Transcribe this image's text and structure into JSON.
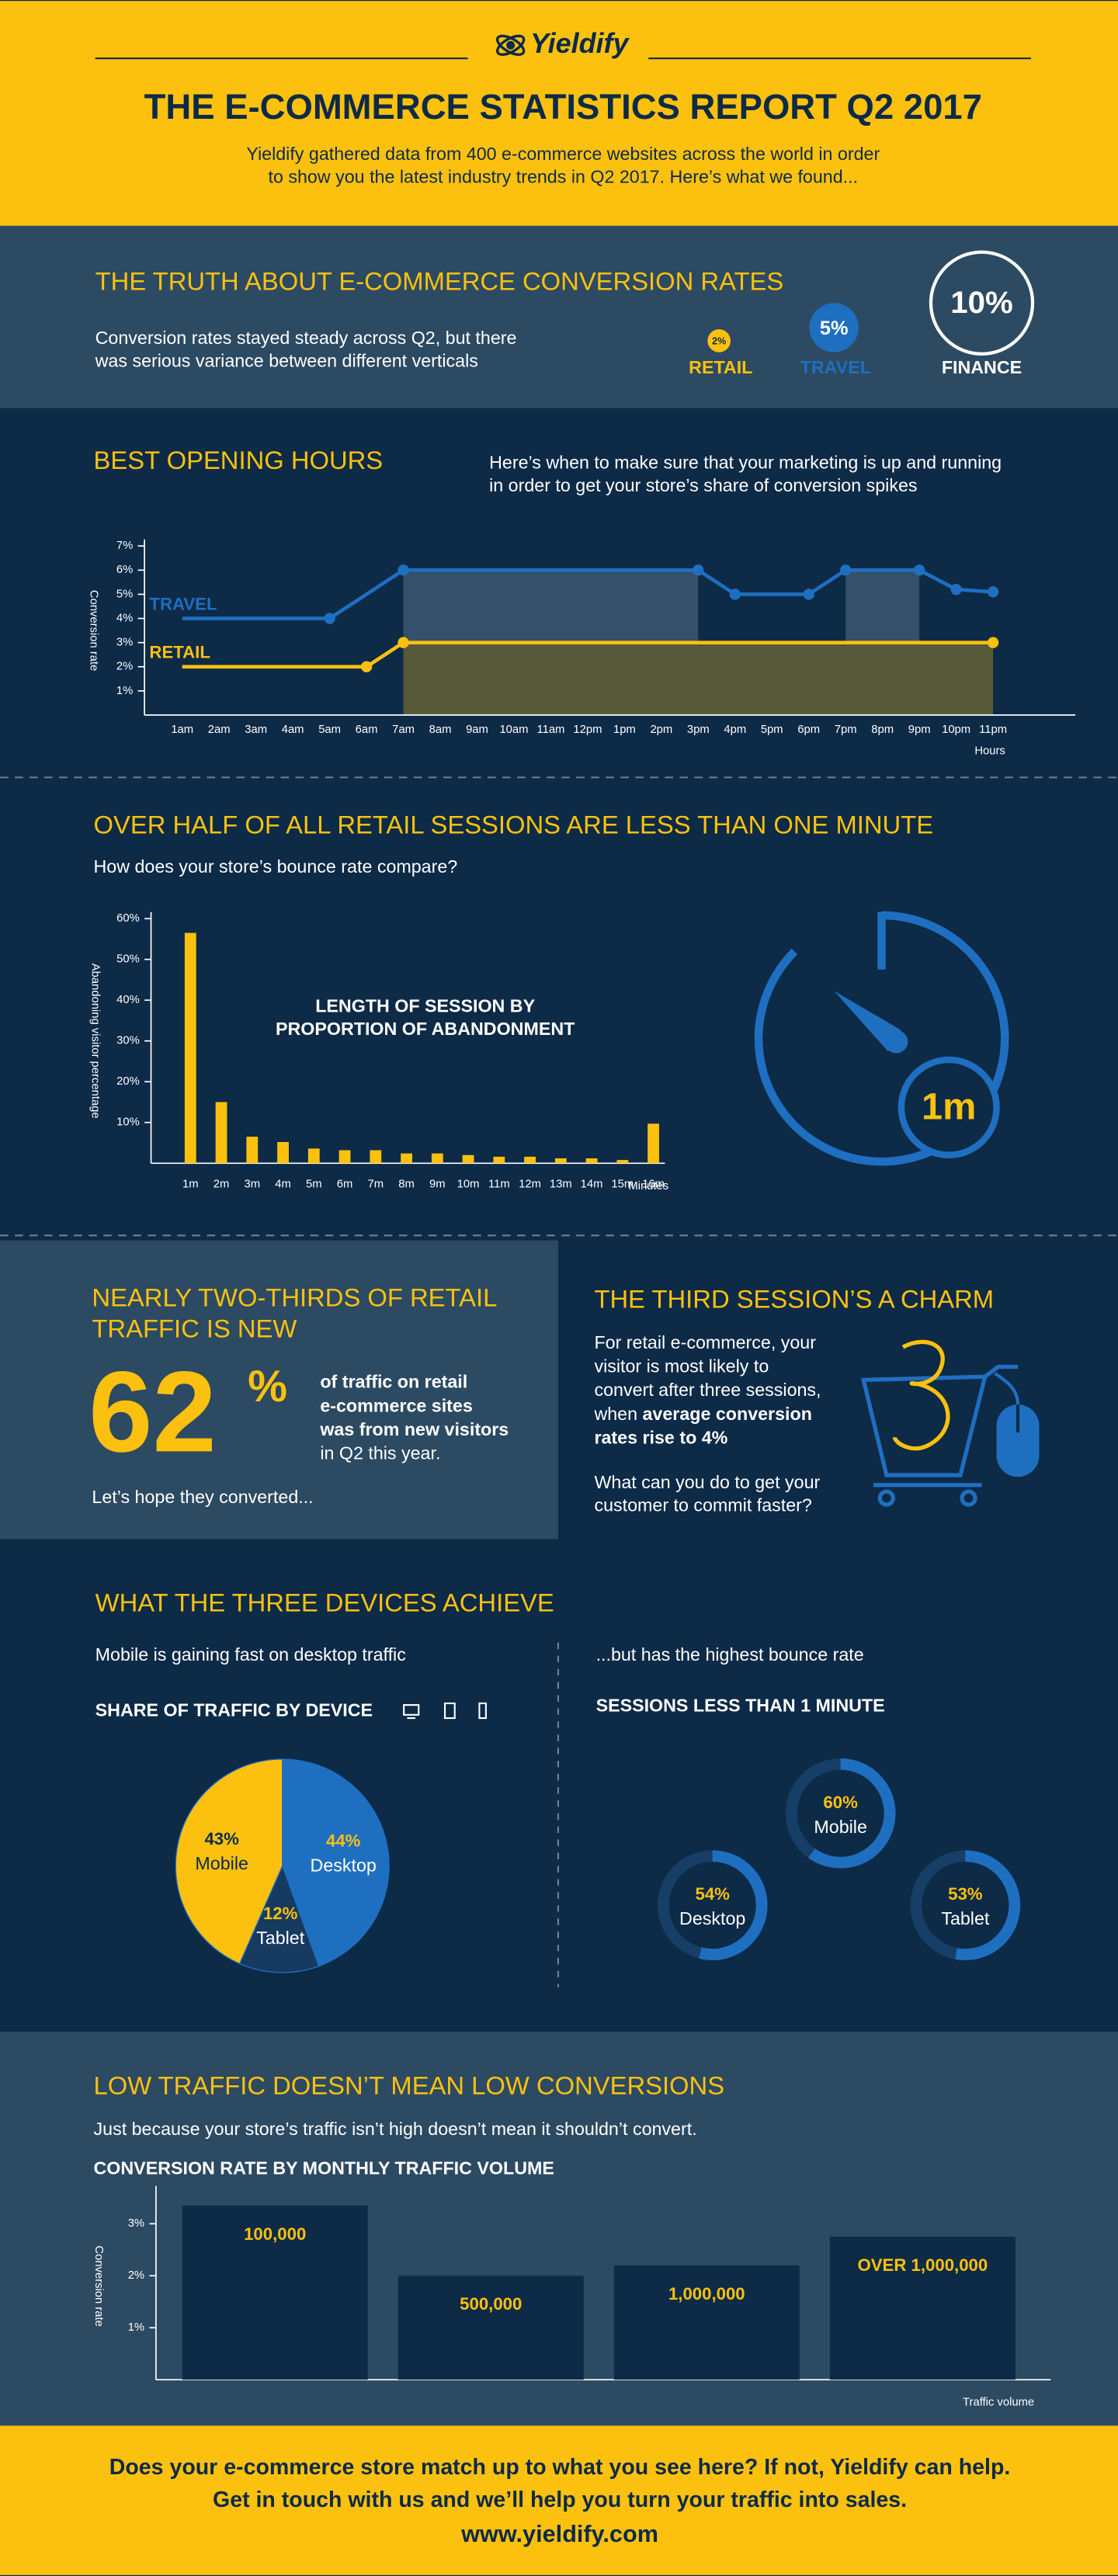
{
  "header": {
    "logo": "Yieldify",
    "title": "THE E-COMMERCE STATISTICS REPORT Q2 2017",
    "intro": [
      "Yieldify gathered data from 400 e-commerce websites across the world in order",
      "to show you the latest industry trends in Q2 2017. Here’s what we found..."
    ]
  },
  "conversion": {
    "heading": "THE TRUTH ABOUT E-COMMERCE CONVERSION RATES",
    "text": [
      "Conversion rates stayed steady across Q2, but there",
      "was serious variance between different verticals"
    ],
    "verticals": [
      {
        "label": "RETAIL",
        "value": "2%"
      },
      {
        "label": "TRAVEL",
        "value": "5%"
      },
      {
        "label": "FINANCE",
        "value": "10%"
      }
    ]
  },
  "hours": {
    "heading": "BEST OPENING HOURS",
    "text": [
      "Here’s when to make sure that your marketing is up and running",
      "in order to get your store’s share of conversion spikes"
    ]
  },
  "sessions": {
    "heading": "OVER HALF OF ALL RETAIL SESSIONS ARE LESS THAN ONE MINUTE",
    "text": "How does your store’s bounce rate compare?",
    "timer": "1m"
  },
  "new_traffic": {
    "heading": [
      "NEARLY TWO-THIRDS OF RETAIL",
      "TRAFFIC IS NEW"
    ],
    "figure": "62",
    "figure_unit": "%",
    "text": [
      [
        {
          "text": "of traffic on retail",
          "bold": true
        }
      ],
      [
        {
          "text": "e-commerce sites",
          "bold": true
        }
      ],
      [
        {
          "text": "was from new visitors",
          "bold": true
        }
      ],
      [
        {
          "text": "in Q2 this year."
        }
      ]
    ],
    "note": "Let’s hope they converted..."
  },
  "third_session": {
    "heading": "THE THIRD SESSION’S A CHARM",
    "body": [
      [
        {
          "text": "For retail e-commerce, your"
        }
      ],
      [
        {
          "text": "visitor is most likely to"
        }
      ],
      [
        {
          "text": "convert after three sessions,"
        }
      ],
      [
        {
          "text": "when "
        },
        {
          "text": "average conversion",
          "bold": true
        }
      ],
      [
        {
          "text": "rates rise to 4%",
          "bold": true
        }
      ]
    ],
    "question": [
      "What can you do to get your",
      "customer to commit faster?"
    ]
  },
  "devices": {
    "heading": "WHAT THE THREE DEVICES ACHIEVE",
    "left_text": "Mobile is gaining fast on desktop traffic",
    "right_text": "...but has the highest bounce rate"
  },
  "traffic": {
    "heading": "LOW TRAFFIC DOESN’T MEAN LOW CONVERSIONS",
    "text": "Just because your store’s traffic isn’t high doesn’t mean it shouldn’t convert."
  },
  "footer": {
    "lines": [
      "Does your e-commerce store match up to what you see here? If not, Yieldify can help.",
      "Get in touch with us and we’ll help you turn your traffic into sales.",
      "www.yieldify.com"
    ]
  },
  "chart_data": [
    {
      "type": "line",
      "xlabel": "Hours",
      "ylabel": "Conversion rate",
      "categories": [
        "1am",
        "2am",
        "3am",
        "4am",
        "5am",
        "6am",
        "7am",
        "8am",
        "9am",
        "10am",
        "11am",
        "12pm",
        "1pm",
        "2pm",
        "3pm",
        "4pm",
        "5pm",
        "6pm",
        "7pm",
        "8pm",
        "9pm",
        "10pm",
        "11pm"
      ],
      "series": [
        {
          "name": "TRAVEL",
          "color": "#1f6fc1",
          "values": [
            4,
            4,
            4,
            4,
            4,
            5,
            6,
            6,
            6,
            6,
            6,
            6,
            6,
            6,
            6,
            5,
            5,
            5,
            6,
            6,
            6,
            5.2,
            5.1
          ]
        },
        {
          "name": "RETAIL",
          "color": "#fcc10f",
          "values": [
            2,
            2,
            2,
            2,
            2,
            2,
            3,
            3,
            3,
            3,
            3,
            3,
            3,
            3,
            3,
            3,
            3,
            3,
            3,
            3,
            3,
            3,
            3
          ]
        }
      ],
      "ylim": [
        0,
        7
      ],
      "yticks": [
        {
          "value": 1,
          "label": "1%"
        },
        {
          "value": 2,
          "label": "2%"
        },
        {
          "value": 3,
          "label": "3%"
        },
        {
          "value": 4,
          "label": "4%"
        },
        {
          "value": 5,
          "label": "5%"
        },
        {
          "value": 6,
          "label": "6%"
        },
        {
          "value": 7,
          "label": "7%"
        }
      ]
    },
    {
      "type": "bar",
      "title": [
        "LENGTH OF SESSION BY",
        "PROPORTION OF ABANDONMENT"
      ],
      "xlabel": "Minutes",
      "ylabel": "Abandoning visitor percentage",
      "color": "#fcc10f",
      "categories": [
        "1m",
        "2m",
        "3m",
        "4m",
        "5m",
        "6m",
        "7m",
        "8m",
        "9m",
        "10m",
        "11m",
        "12m",
        "13m",
        "14m",
        "15m",
        "16m"
      ],
      "values": [
        56.5,
        15,
        6.5,
        5.2,
        3.6,
        3.2,
        3.2,
        2.4,
        2.4,
        2,
        1.6,
        1.6,
        1.2,
        1.2,
        0.8,
        9.7
      ],
      "ylim": [
        0,
        60
      ],
      "yticks": [
        {
          "value": 10,
          "label": "10%"
        },
        {
          "value": 20,
          "label": "20%"
        },
        {
          "value": 30,
          "label": "30%"
        },
        {
          "value": 40,
          "label": "40%"
        },
        {
          "value": 50,
          "label": "50%"
        },
        {
          "value": 60,
          "label": "60%"
        }
      ]
    },
    {
      "type": "pie",
      "title": "SHARE OF TRAFFIC BY DEVICE",
      "categories": [
        "Desktop",
        "Tablet",
        "Mobile"
      ],
      "values": [
        44,
        12,
        43
      ],
      "value_labels": [
        "44%",
        "12%",
        "43%"
      ],
      "colors": [
        "#1f6fc1",
        "#163a60",
        "#fcc10f"
      ]
    },
    {
      "type": "donut",
      "title": "SESSIONS LESS THAN 1 MINUTE",
      "categories": [
        "Mobile",
        "Desktop",
        "Tablet"
      ],
      "values": [
        60,
        54,
        53
      ],
      "value_labels": [
        "60%",
        "54%",
        "53%"
      ],
      "color": "#1f6fc1"
    },
    {
      "type": "bar",
      "title": "CONVERSION RATE BY MONTHLY TRAFFIC VOLUME",
      "xlabel": "Traffic volume",
      "ylabel": "Conversion rate",
      "color": "#0d2a47",
      "categories": [
        "100,000",
        "500,000",
        "1,000,000",
        "OVER 1,000,000"
      ],
      "values": [
        3.35,
        2,
        2.2,
        2.75
      ],
      "ylim": [
        0,
        3.6
      ],
      "yticks": [
        {
          "value": 1,
          "label": "1%"
        },
        {
          "value": 2,
          "label": "2%"
        },
        {
          "value": 3,
          "label": "3%"
        }
      ]
    }
  ]
}
